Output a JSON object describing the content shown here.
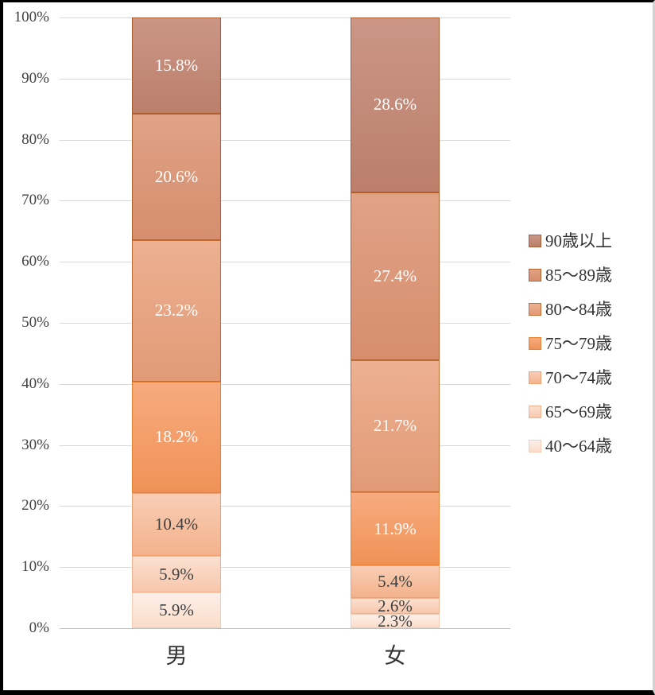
{
  "chart_data": {
    "type": "bar",
    "variant": "100-percent-stacked-column",
    "title": "",
    "xlabel": "",
    "ylabel": "",
    "categories": [
      "男",
      "女"
    ],
    "series": [
      {
        "name": "90歳以上",
        "values": [
          15.8,
          28.6
        ],
        "labels": [
          "15.8%",
          "28.6%"
        ]
      },
      {
        "name": "85〜89歳",
        "values": [
          20.6,
          27.4
        ],
        "labels": [
          "20.6%",
          "27.4%"
        ]
      },
      {
        "name": "80〜84歳",
        "values": [
          23.2,
          21.7
        ],
        "labels": [
          "23.2%",
          "21.7%"
        ]
      },
      {
        "name": "75〜79歳",
        "values": [
          18.2,
          11.9
        ],
        "labels": [
          "18.2%",
          "11.9%"
        ]
      },
      {
        "name": "70〜74歳",
        "values": [
          10.4,
          5.4
        ],
        "labels": [
          "10.4%",
          "5.4%"
        ]
      },
      {
        "name": "65〜69歳",
        "values": [
          5.9,
          2.6
        ],
        "labels": [
          "5.9%",
          "2.6%"
        ]
      },
      {
        "name": "40〜64歳",
        "values": [
          5.9,
          2.3
        ],
        "labels": [
          "5.9%",
          "2.3%"
        ]
      }
    ],
    "stack_note": "series listed top-of-stack first; 40〜64歳 sits at the bottom of each column",
    "y_axis": {
      "min": 0,
      "max": 100,
      "ticks": [
        "100%",
        "90%",
        "80%",
        "70%",
        "60%",
        "50%",
        "40%",
        "30%",
        "20%",
        "10%",
        "0%"
      ],
      "grid": true
    },
    "legend_position": "right"
  },
  "style": {
    "series_colors": [
      {
        "name": "90歳以上",
        "fill_top": "#cb9686",
        "fill_bottom": "#bb7f6b",
        "border": "#aa5c2e",
        "label_color": "#ffffff"
      },
      {
        "name": "85〜89歳",
        "fill_top": "#e0a286",
        "fill_bottom": "#d68e6e",
        "border": "#b4602c",
        "label_color": "#ffffff"
      },
      {
        "name": "80〜84歳",
        "fill_top": "#ecb092",
        "fill_bottom": "#e29a76",
        "border": "#c66c31",
        "label_color": "#ffffff"
      },
      {
        "name": "75〜79歳",
        "fill_top": "#f7ab7f",
        "fill_bottom": "#f09257",
        "border": "#e98230",
        "label_color": "#ffffff"
      },
      {
        "name": "70〜74歳",
        "fill_top": "#f9ceb6",
        "fill_bottom": "#f3b28c",
        "border": "#f0a173",
        "label_color": "#3f3f3f"
      },
      {
        "name": "65〜69歳",
        "fill_top": "#fbe0d1",
        "fill_bottom": "#f7c7ac",
        "border": "#f3b18d",
        "label_color": "#3f3f3f"
      },
      {
        "name": "40〜64歳",
        "fill_top": "#fdf0e9",
        "fill_bottom": "#fadcca",
        "border": "#f6ccb5",
        "label_color": "#3f3f3f"
      }
    ],
    "gridline_color": "#d9d9d9",
    "baseline_color": "#bfbfbf",
    "axis_text_color": "#404040",
    "legend_text_color": "#333333",
    "background": "#ffffff",
    "frame_color": "#000000"
  }
}
